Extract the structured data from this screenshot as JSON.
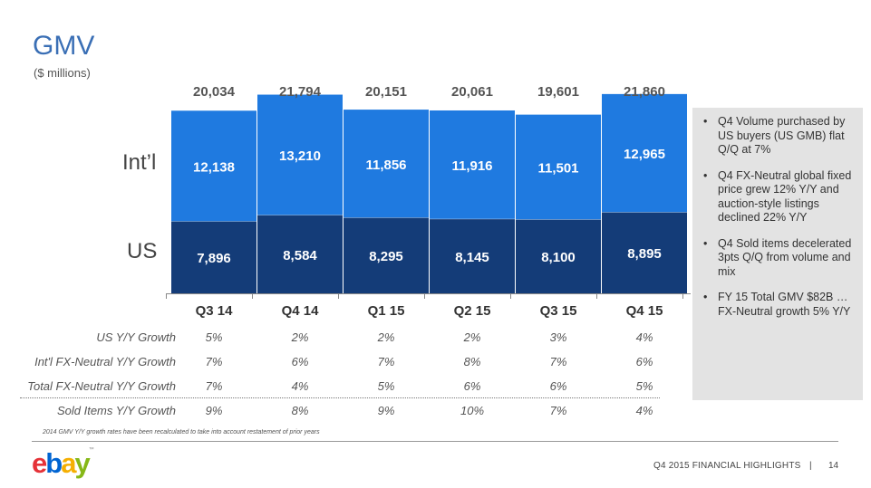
{
  "title": "GMV",
  "subtitle": "($ millions)",
  "segment_labels": {
    "intl": "Int’l",
    "us": "US"
  },
  "colors": {
    "intl": "#1f7ae0",
    "us": "#143c78",
    "title": "#3a6fb5",
    "callout_bg": "#e3e3e3"
  },
  "chart_data": {
    "type": "bar",
    "stacked": true,
    "categories": [
      "Q3 14",
      "Q4 14",
      "Q1 15",
      "Q2 15",
      "Q3 15",
      "Q4 15"
    ],
    "series": [
      {
        "name": "US",
        "values": [
          7896,
          8584,
          8295,
          8145,
          8100,
          8895
        ]
      },
      {
        "name": "Int’l",
        "values": [
          12138,
          13210,
          11856,
          11916,
          11501,
          12965
        ]
      }
    ],
    "totals": [
      "20,034",
      "21,794",
      "20,151",
      "20,061",
      "19,601",
      "21,860"
    ],
    "series_labels": {
      "US": [
        "7,896",
        "8,584",
        "8,295",
        "8,145",
        "8,100",
        "8,895"
      ],
      "Int’l": [
        "12,138",
        "13,210",
        "11,856",
        "11,916",
        "11,501",
        "12,965"
      ]
    },
    "ylim": [
      0,
      22500
    ],
    "title": "GMV",
    "xlabel": "",
    "ylabel": ""
  },
  "metrics": [
    {
      "label": "US Y/Y Growth",
      "values": [
        "5%",
        "2%",
        "2%",
        "2%",
        "3%",
        "4%"
      ]
    },
    {
      "label": "Int'l FX-Neutral Y/Y Growth",
      "values": [
        "7%",
        "6%",
        "7%",
        "8%",
        "7%",
        "6%"
      ]
    },
    {
      "label": "Total FX-Neutral Y/Y Growth",
      "values": [
        "7%",
        "4%",
        "5%",
        "6%",
        "6%",
        "5%"
      ]
    },
    {
      "label": "Sold Items Y/Y Growth",
      "values": [
        "9%",
        "8%",
        "9%",
        "10%",
        "7%",
        "4%"
      ]
    }
  ],
  "callout": {
    "bullets": [
      "Q4 Volume purchased by US buyers (US GMB) flat Q/Q at 7%",
      "Q4 FX-Neutral global fixed price grew 12% Y/Y and auction-style listings declined 22% Y/Y",
      "Q4 Sold items decelerated 3pts Q/Q from volume and mix",
      "FY 15 Total GMV $82B … FX-Neutral growth 5% Y/Y"
    ],
    "bullet_char": "•"
  },
  "footnote": "2014 GMV Y/Y growth rates have been recalculated to take into account restatement of prior years",
  "footer": {
    "logo_letters": [
      "e",
      "b",
      "a",
      "y"
    ],
    "logo_colors": [
      "#e53238",
      "#0064d2",
      "#f5af02",
      "#86b817"
    ],
    "logo_tm": "™",
    "text": "Q4 2015 FINANCIAL HIGHLIGHTS",
    "separator": "|",
    "page": "14"
  }
}
